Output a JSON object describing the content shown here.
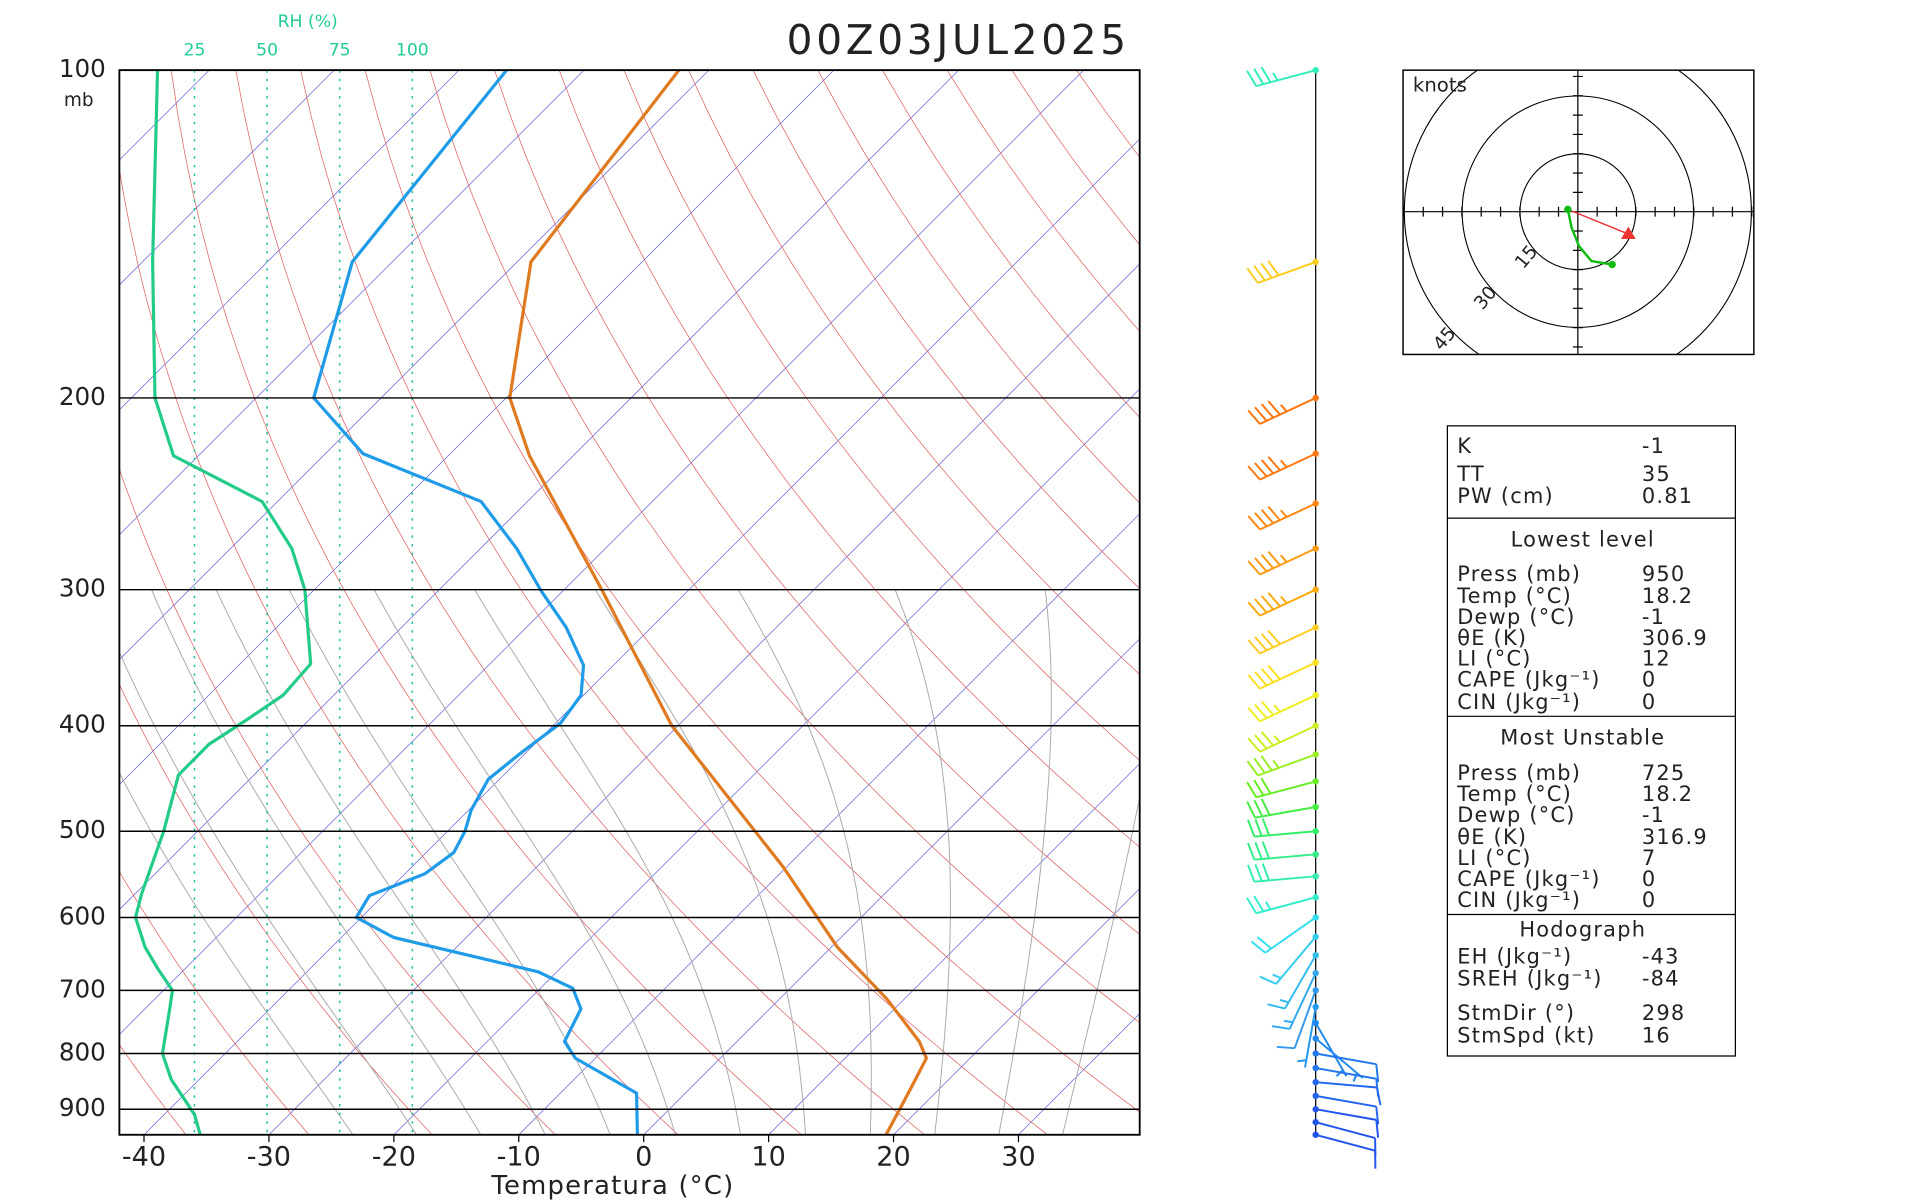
{
  "chart_data": {
    "type": "skewt",
    "title": "00Z03JUL2025",
    "xlabel": "Temperatura (°C)",
    "ylabel": "mb",
    "rh_label": "RH (%)",
    "rh_ticks": [
      25,
      50,
      75,
      100
    ],
    "xticks": [
      -40,
      -30,
      -20,
      -10,
      0,
      10,
      20,
      30
    ],
    "yticks": [
      100,
      200,
      300,
      400,
      500,
      600,
      700,
      800,
      900
    ],
    "ylim": [
      950,
      100
    ],
    "log_y": true,
    "temperature": {
      "color": "#e07a20",
      "pressure": [
        950,
        863,
        808,
        780,
        713,
        639,
        539,
        400,
        301,
        226,
        200,
        150,
        100
      ],
      "values": [
        19.4,
        17.7,
        16.5,
        14.6,
        8.6,
        0.5,
        -10.3,
        -30.5,
        -46.8,
        -63.5,
        -69.7,
        -78.9,
        -82.4
      ]
    },
    "dewpoint": {
      "color": "#1f9be8",
      "pressure": [
        950,
        870,
        808,
        780,
        728,
        697,
        673,
        626,
        600,
        573,
        547,
        523,
        500,
        478,
        448,
        424,
        398,
        375,
        352,
        325,
        301,
        275,
        249,
        225,
        200,
        150,
        100
      ],
      "values": [
        -0.5,
        -3.9,
        -11.6,
        -13.8,
        -15.1,
        -17.4,
        -21.5,
        -35.8,
        -40.4,
        -41.1,
        -38.4,
        -37.8,
        -38.6,
        -39.8,
        -40.9,
        -40.4,
        -39.6,
        -40.2,
        -42.4,
        -46.8,
        -51.7,
        -57.1,
        -63.7,
        -77.0,
        -85.4,
        -93.2,
        -96.2
      ]
    },
    "rh": {
      "color": "#22cc88",
      "pressure": [
        950,
        910,
        845,
        800,
        728,
        700,
        668,
        639,
        600,
        571,
        500,
        444,
        416,
        395,
        375,
        351,
        300,
        275,
        249,
        226,
        200,
        150,
        100
      ],
      "values": [
        27,
        25,
        17,
        14,
        16.5,
        17.4,
        12.3,
        8,
        4.7,
        6.8,
        14.4,
        19.5,
        30,
        43,
        55.5,
        65,
        63,
        58.5,
        48.3,
        17.8,
        11.4,
        10.6,
        12.3
      ]
    },
    "wind": {
      "pressure": [
        100,
        150,
        200,
        225,
        250,
        275,
        300,
        325,
        350,
        375,
        400,
        425,
        450,
        475,
        500,
        525,
        550,
        575,
        600,
        625,
        650,
        675,
        700,
        725,
        750,
        775,
        800,
        825,
        850,
        875,
        900,
        925,
        950
      ],
      "speed": [
        35,
        40,
        45,
        45,
        45,
        45,
        45,
        40,
        40,
        35,
        35,
        35,
        30,
        30,
        30,
        30,
        30,
        25,
        20,
        15,
        15,
        15,
        10,
        5,
        5,
        5,
        10,
        10,
        10,
        10,
        10,
        10,
        10
      ],
      "direction": [
        255,
        250,
        245,
        245,
        245,
        245,
        245,
        245,
        245,
        245,
        245,
        250,
        255,
        260,
        265,
        265,
        265,
        255,
        235,
        220,
        210,
        205,
        200,
        190,
        150,
        130,
        100,
        100,
        95,
        100,
        100,
        105,
        105
      ],
      "colors": [
        "#33eebb",
        "#ffcc22",
        "#ff7711",
        "#ff7711",
        "#ff8811",
        "#ff9911",
        "#ffaa11",
        "#ffcc22",
        "#ffdd22",
        "#eeee22",
        "#ccee22",
        "#99ee22",
        "#66ee22",
        "#44ee44",
        "#33ee66",
        "#33ee88",
        "#33eeaa",
        "#33eecc",
        "#33ddee",
        "#33ccee",
        "#33bbee",
        "#33aaee",
        "#3399ee",
        "#2299ee",
        "#2288ee",
        "#2288ee",
        "#2277ee",
        "#2277ee",
        "#2266ee",
        "#2266ee",
        "#2255ee",
        "#2255ee",
        "#2255ee"
      ]
    },
    "hodograph": {
      "label": "knots",
      "rings": [
        15,
        30,
        45
      ],
      "color": "#11bb11",
      "u": [
        -2.6,
        -1.6,
        0.3,
        3.5,
        8.9
      ],
      "v": [
        0.6,
        -4.2,
        -8.9,
        -12.8,
        -13.7
      ],
      "storm_u": 13.1,
      "storm_v": -5.8,
      "storm_color": "#ee3333"
    }
  },
  "table": {
    "top": [
      {
        "label": "K",
        "value": -1
      },
      {
        "label": "TT",
        "value": 35
      },
      {
        "label": "PW (cm)",
        "value": 0.81
      }
    ],
    "lowest": {
      "heading": "Lowest level",
      "rows": [
        {
          "label": "Press (mb)",
          "value": 950
        },
        {
          "label": "Temp (°C)",
          "value": 18.2
        },
        {
          "label": "Dewp (°C)",
          "value": -1
        },
        {
          "label": "θE (K)",
          "value": 306.9
        },
        {
          "label": "LI (°C)",
          "value": 12
        },
        {
          "label": "CAPE (Jkg⁻¹)",
          "value": 0
        },
        {
          "label": "CIN (Jkg⁻¹)",
          "value": 0
        }
      ]
    },
    "most_unstable": {
      "heading": "Most Unstable",
      "rows": [
        {
          "label": "Press (mb)",
          "value": 725
        },
        {
          "label": "Temp (°C)",
          "value": 18.2
        },
        {
          "label": "Dewp (°C)",
          "value": -1
        },
        {
          "label": "θE (K)",
          "value": 316.9
        },
        {
          "label": "LI (°C)",
          "value": 7
        },
        {
          "label": "CAPE (Jkg⁻¹)",
          "value": 0
        },
        {
          "label": "CIN (Jkg⁻¹)",
          "value": 0
        }
      ]
    },
    "hodograph": {
      "heading": "Hodograph",
      "rows": [
        {
          "label": "EH (Jkg⁻¹)",
          "value": -43
        },
        {
          "label": "SREH (Jkg⁻¹)",
          "value": -84
        },
        {
          "label": "StmDir (°)",
          "value": 298
        },
        {
          "label": "StmSpd (kt)",
          "value": 16
        }
      ]
    }
  }
}
